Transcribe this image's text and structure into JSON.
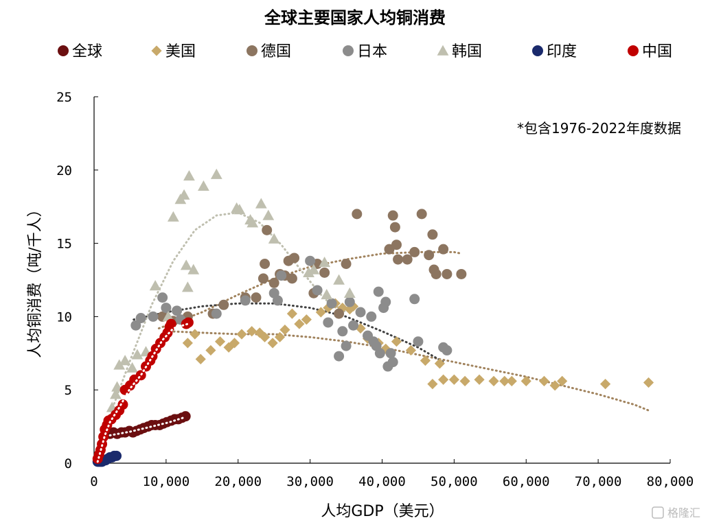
{
  "chart_data": {
    "type": "scatter",
    "title": "全球主要国家人均铜消费",
    "xlabel": "人均GDP（美元）",
    "ylabel": "人均铜消费（吨/千人）",
    "annotation": "*包含1976-2022年度数据",
    "xlim": [
      0,
      80000
    ],
    "ylim": [
      0,
      25
    ],
    "x_ticks": [
      0,
      10000,
      20000,
      30000,
      40000,
      50000,
      60000,
      70000,
      80000
    ],
    "x_tick_labels": [
      "0",
      "10,000",
      "20,000",
      "30,000",
      "40,000",
      "50,000",
      "60,000",
      "70,000",
      "80,000"
    ],
    "y_ticks": [
      0,
      5,
      10,
      15,
      20,
      25
    ],
    "y_tick_labels": [
      "0",
      "5",
      "10",
      "15",
      "20",
      "25"
    ],
    "grid": false,
    "legend_position": "top",
    "series": [
      {
        "name": "全球",
        "marker": "circle",
        "color": "#6b0f10",
        "trend_color": "#ffffff",
        "points": [
          [
            2200,
            2.0
          ],
          [
            2700,
            2.1
          ],
          [
            3200,
            2.0
          ],
          [
            3800,
            2.1
          ],
          [
            4300,
            2.1
          ],
          [
            4900,
            2.2
          ],
          [
            5400,
            2.1
          ],
          [
            5900,
            2.2
          ],
          [
            6400,
            2.3
          ],
          [
            6900,
            2.4
          ],
          [
            7500,
            2.5
          ],
          [
            8000,
            2.6
          ],
          [
            8500,
            2.6
          ],
          [
            9100,
            2.6
          ],
          [
            9600,
            2.7
          ],
          [
            10100,
            2.8
          ],
          [
            10700,
            2.9
          ],
          [
            11200,
            3.0
          ],
          [
            11700,
            3.0
          ],
          [
            12200,
            3.1
          ],
          [
            12700,
            3.2
          ]
        ],
        "trend": [
          [
            2200,
            1.9
          ],
          [
            5000,
            2.15
          ],
          [
            8000,
            2.5
          ],
          [
            10500,
            2.8
          ],
          [
            12700,
            3.15
          ]
        ]
      },
      {
        "name": "美国",
        "marker": "diamond",
        "color": "#c8a96a",
        "trend_color": "#a0825c",
        "points": [
          [
            13000,
            8.2
          ],
          [
            14000,
            8.8
          ],
          [
            14800,
            7.1
          ],
          [
            16200,
            7.7
          ],
          [
            17500,
            8.3
          ],
          [
            18700,
            7.9
          ],
          [
            19500,
            8.2
          ],
          [
            20500,
            8.8
          ],
          [
            21900,
            9.0
          ],
          [
            23000,
            8.9
          ],
          [
            23700,
            8.6
          ],
          [
            24800,
            8.2
          ],
          [
            25800,
            8.6
          ],
          [
            26500,
            9.1
          ],
          [
            27500,
            10.2
          ],
          [
            28500,
            9.5
          ],
          [
            29500,
            9.8
          ],
          [
            31500,
            10.3
          ],
          [
            32500,
            10.6
          ],
          [
            33500,
            10.9
          ],
          [
            34500,
            10.6
          ],
          [
            35500,
            10.5
          ],
          [
            36000,
            10.7
          ],
          [
            37000,
            9.2
          ],
          [
            38000,
            8.5
          ],
          [
            39500,
            8.2
          ],
          [
            40500,
            7.8
          ],
          [
            42000,
            8.3
          ],
          [
            44000,
            7.7
          ],
          [
            46000,
            7.0
          ],
          [
            47000,
            5.4
          ],
          [
            48000,
            6.8
          ],
          [
            48500,
            5.7
          ],
          [
            50000,
            5.7
          ],
          [
            51500,
            5.6
          ],
          [
            53500,
            5.7
          ],
          [
            55500,
            5.6
          ],
          [
            57000,
            5.6
          ],
          [
            58000,
            5.6
          ],
          [
            60000,
            5.6
          ],
          [
            62500,
            5.6
          ],
          [
            64000,
            5.3
          ],
          [
            65000,
            5.6
          ],
          [
            71000,
            5.4
          ],
          [
            77000,
            5.5
          ]
        ],
        "trend": [
          [
            10500,
            9.0
          ],
          [
            15000,
            8.9
          ],
          [
            20000,
            8.8
          ],
          [
            25000,
            8.8
          ],
          [
            30000,
            8.6
          ],
          [
            35000,
            8.3
          ],
          [
            40000,
            7.9
          ],
          [
            45000,
            7.4
          ],
          [
            50000,
            6.9
          ],
          [
            55000,
            6.4
          ],
          [
            60000,
            5.9
          ],
          [
            65000,
            5.3
          ],
          [
            70000,
            4.7
          ],
          [
            75000,
            4.0
          ],
          [
            77000,
            3.6
          ]
        ]
      },
      {
        "name": "德国",
        "marker": "circle",
        "color": "#8c7560",
        "trend_color": "#a0825c",
        "points": [
          [
            9500,
            10.0
          ],
          [
            11000,
            9.7
          ],
          [
            13000,
            10.0
          ],
          [
            16500,
            10.2
          ],
          [
            18000,
            10.8
          ],
          [
            21000,
            11.3
          ],
          [
            22500,
            11.3
          ],
          [
            23500,
            12.6
          ],
          [
            23700,
            13.6
          ],
          [
            24000,
            15.9
          ],
          [
            25000,
            12.3
          ],
          [
            25800,
            12.9
          ],
          [
            26500,
            12.8
          ],
          [
            27000,
            13.8
          ],
          [
            27500,
            12.6
          ],
          [
            27800,
            14.0
          ],
          [
            30500,
            11.6
          ],
          [
            31000,
            13.6
          ],
          [
            32000,
            13.0
          ],
          [
            34000,
            10.2
          ],
          [
            35000,
            13.6
          ],
          [
            36500,
            17.0
          ],
          [
            41000,
            14.6
          ],
          [
            41500,
            16.9
          ],
          [
            41800,
            16.1
          ],
          [
            42000,
            14.9
          ],
          [
            42200,
            13.9
          ],
          [
            43500,
            13.9
          ],
          [
            44500,
            14.4
          ],
          [
            45500,
            17.0
          ],
          [
            46500,
            14.2
          ],
          [
            47000,
            15.6
          ],
          [
            47200,
            13.2
          ],
          [
            47500,
            12.9
          ],
          [
            48500,
            14.6
          ],
          [
            49000,
            12.9
          ],
          [
            51000,
            12.9
          ]
        ],
        "trend": [
          [
            9000,
            9.2
          ],
          [
            15000,
            10.3
          ],
          [
            20000,
            11.5
          ],
          [
            25000,
            12.6
          ],
          [
            30000,
            13.4
          ],
          [
            35000,
            13.9
          ],
          [
            40000,
            14.3
          ],
          [
            45000,
            14.4
          ],
          [
            50000,
            14.4
          ],
          [
            51000,
            14.3
          ]
        ]
      },
      {
        "name": "日本",
        "marker": "circle",
        "color": "#8c8c8c",
        "trend_color": "#404040",
        "points": [
          [
            5800,
            9.4
          ],
          [
            6500,
            9.9
          ],
          [
            8200,
            10.0
          ],
          [
            9500,
            11.3
          ],
          [
            10000,
            10.6
          ],
          [
            11500,
            10.4
          ],
          [
            12000,
            9.8
          ],
          [
            17000,
            10.2
          ],
          [
            21000,
            11.1
          ],
          [
            25000,
            11.6
          ],
          [
            25500,
            11.1
          ],
          [
            26000,
            12.8
          ],
          [
            30000,
            13.8
          ],
          [
            31000,
            11.8
          ],
          [
            32500,
            9.6
          ],
          [
            33000,
            10.9
          ],
          [
            34000,
            7.3
          ],
          [
            34500,
            9.0
          ],
          [
            35000,
            8.0
          ],
          [
            35500,
            11.0
          ],
          [
            36000,
            9.4
          ],
          [
            37000,
            10.3
          ],
          [
            38000,
            8.7
          ],
          [
            38500,
            10.0
          ],
          [
            38800,
            8.3
          ],
          [
            39200,
            8.0
          ],
          [
            39500,
            11.7
          ],
          [
            39700,
            7.5
          ],
          [
            40200,
            10.6
          ],
          [
            40500,
            11.0
          ],
          [
            40800,
            6.6
          ],
          [
            41200,
            7.5
          ],
          [
            41500,
            6.9
          ],
          [
            44500,
            11.2
          ],
          [
            45000,
            8.3
          ],
          [
            48500,
            7.9
          ],
          [
            49000,
            7.7
          ]
        ],
        "trend": [
          [
            5500,
            9.8
          ],
          [
            10000,
            10.3
          ],
          [
            15000,
            10.7
          ],
          [
            20000,
            10.9
          ],
          [
            25000,
            10.9
          ],
          [
            30000,
            10.6
          ],
          [
            35000,
            10.0
          ],
          [
            40000,
            9.0
          ],
          [
            45000,
            7.9
          ],
          [
            48500,
            6.9
          ]
        ]
      },
      {
        "name": "韩国",
        "marker": "triangle",
        "color": "#bfbfaf",
        "trend_color": "#bfbfaf",
        "points": [
          [
            2500,
            3.8
          ],
          [
            3000,
            4.7
          ],
          [
            3200,
            5.2
          ],
          [
            3500,
            6.7
          ],
          [
            4300,
            7.0
          ],
          [
            5300,
            6.5
          ],
          [
            6000,
            7.4
          ],
          [
            7200,
            7.6
          ],
          [
            8500,
            12.1
          ],
          [
            10300,
            10.0
          ],
          [
            11000,
            16.8
          ],
          [
            12000,
            18.0
          ],
          [
            12500,
            18.3
          ],
          [
            12800,
            13.5
          ],
          [
            13000,
            12.0
          ],
          [
            13200,
            19.6
          ],
          [
            13800,
            13.2
          ],
          [
            15200,
            18.9
          ],
          [
            17000,
            19.7
          ],
          [
            19800,
            17.4
          ],
          [
            20200,
            17.3
          ],
          [
            21700,
            16.6
          ],
          [
            22000,
            16.4
          ],
          [
            23200,
            17.7
          ],
          [
            24200,
            16.9
          ],
          [
            25000,
            15.3
          ],
          [
            29800,
            13.0
          ],
          [
            30500,
            13.2
          ],
          [
            32000,
            13.7
          ],
          [
            32300,
            11.5
          ],
          [
            34000,
            12.5
          ],
          [
            35500,
            11.6
          ]
        ],
        "trend": [
          [
            2000,
            3.0
          ],
          [
            5000,
            7.0
          ],
          [
            8000,
            10.8
          ],
          [
            11000,
            13.8
          ],
          [
            14000,
            15.9
          ],
          [
            17000,
            16.9
          ],
          [
            20000,
            17.1
          ],
          [
            23000,
            16.4
          ],
          [
            26000,
            14.9
          ],
          [
            29000,
            13.0
          ],
          [
            32000,
            11.2
          ],
          [
            35000,
            10.3
          ]
        ]
      },
      {
        "name": "印度",
        "marker": "circle",
        "color": "#1a2a6c",
        "trend_color": "#1a2a6c",
        "points": [
          [
            500,
            0.1
          ],
          [
            700,
            0.1
          ],
          [
            900,
            0.1
          ],
          [
            1100,
            0.1
          ],
          [
            1300,
            0.2
          ],
          [
            1600,
            0.2
          ],
          [
            1900,
            0.3
          ],
          [
            2200,
            0.4
          ],
          [
            2500,
            0.4
          ],
          [
            2800,
            0.5
          ],
          [
            3100,
            0.5
          ]
        ],
        "trend": []
      },
      {
        "name": "中国",
        "marker": "circle",
        "color": "#c00000",
        "trend_color": "#ffffff",
        "points": [
          [
            500,
            0.3
          ],
          [
            700,
            0.6
          ],
          [
            900,
            0.9
          ],
          [
            1100,
            1.3
          ],
          [
            1300,
            1.8
          ],
          [
            1500,
            2.3
          ],
          [
            1800,
            2.6
          ],
          [
            2000,
            2.9
          ],
          [
            2400,
            3.0
          ],
          [
            3000,
            3.3
          ],
          [
            3500,
            3.6
          ],
          [
            4000,
            4.0
          ],
          [
            4300,
            5.0
          ],
          [
            5000,
            5.3
          ],
          [
            5600,
            5.7
          ],
          [
            6500,
            6.0
          ],
          [
            7200,
            6.6
          ],
          [
            7800,
            7.0
          ],
          [
            8100,
            7.3
          ],
          [
            8600,
            7.8
          ],
          [
            9200,
            8.2
          ],
          [
            9800,
            8.6
          ],
          [
            10200,
            8.9
          ],
          [
            10500,
            9.3
          ],
          [
            10700,
            9.5
          ],
          [
            12800,
            9.5
          ],
          [
            13100,
            9.6
          ]
        ],
        "trend": [
          [
            500,
            0.1
          ],
          [
            1000,
            1.0
          ],
          [
            1500,
            1.9
          ],
          [
            2200,
            2.8
          ],
          [
            3500,
            3.8
          ],
          [
            5000,
            5.1
          ],
          [
            6500,
            6.0
          ],
          [
            8000,
            7.2
          ],
          [
            9500,
            8.4
          ],
          [
            11000,
            9.2
          ],
          [
            13000,
            9.5
          ]
        ]
      }
    ]
  },
  "watermark": "格隆汇"
}
